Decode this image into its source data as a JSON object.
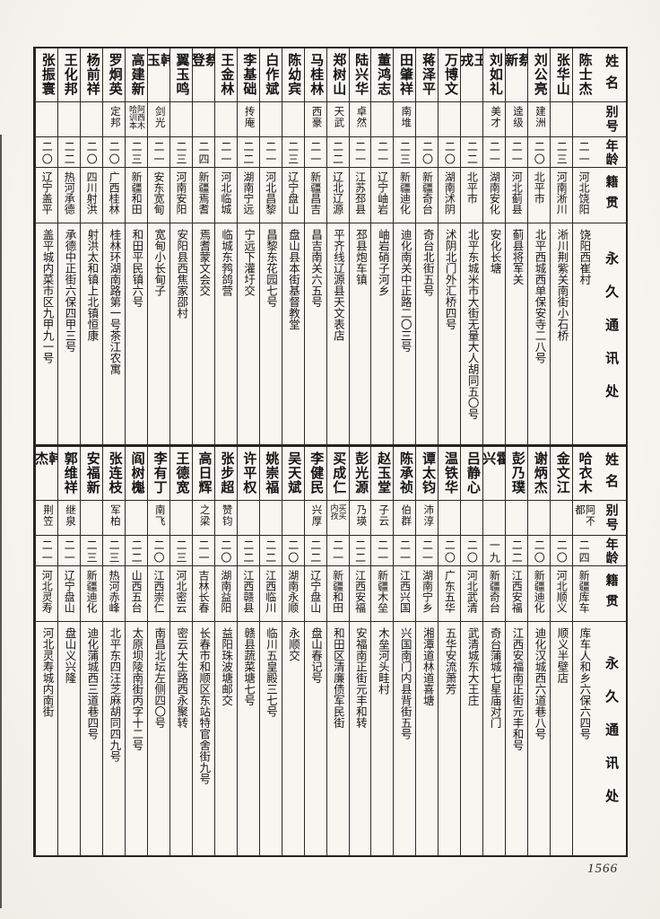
{
  "page_number": "1566",
  "headers": {
    "name": "姓名",
    "alias": "别号",
    "age": "年龄",
    "origin": "籍贯",
    "address": "永久通讯处"
  },
  "tables": [
    {
      "entries": [
        {
          "name": "陈士杰",
          "alias": "",
          "age": "二一",
          "origin": "河北饶阳",
          "address": "饶阳西崔村"
        },
        {
          "name": "张华山",
          "alias": "",
          "age": "二三",
          "origin": "河南淅川",
          "address": "淅川荆紫关南街小石桥"
        },
        {
          "name": "刘公亮",
          "alias": "建洲",
          "age": "二〇",
          "origin": "北平市",
          "address": "北平西城西单保安寺二八号"
        },
        {
          "name": "蔡新",
          "alias": "逵级",
          "age": "二一",
          "origin": "河北蓟县",
          "address": "蓟县将军关"
        },
        {
          "name": "刘如礼",
          "alias": "美才",
          "age": "二一",
          "origin": "湖南安化",
          "address": "安化长塘"
        },
        {
          "name": "王戎",
          "alias": "",
          "age": "二二",
          "origin": "北平市",
          "address": "北平东城米市大街无量大人胡同五〇号"
        },
        {
          "name": "万博文",
          "alias": "",
          "age": "二〇",
          "origin": "湖南沭阴",
          "address": "沭阴北门外汇桥四号"
        },
        {
          "name": "蒋泽平",
          "alias": "",
          "age": "二〇",
          "origin": "新疆奇台",
          "address": "奇台北街五号"
        },
        {
          "name": "田肇祥",
          "alias": "南堆",
          "age": "二三",
          "origin": "新疆迪化",
          "address": "迪化南关中正路二〇三号"
        },
        {
          "name": "董鸿志",
          "alias": "",
          "age": "二一",
          "origin": "辽宁岫岩",
          "address": "岫岩硝子河乡"
        },
        {
          "name": "陆兴华",
          "alias": "卓然",
          "age": "二一",
          "origin": "江苏邳县",
          "address": "邳县炮车镇"
        },
        {
          "name": "郑树山",
          "alias": "天武",
          "age": "二二",
          "origin": "辽北辽源",
          "address": "平齐线辽源县天文表店"
        },
        {
          "name": "马桂林",
          "alias": "西豪",
          "age": "二一",
          "origin": "新疆昌吉",
          "address": "昌吉南关六五号"
        },
        {
          "name": "陈幼宾",
          "alias": "",
          "age": "二三",
          "origin": "辽宁盘山",
          "address": "盘山县本街基督教堂"
        },
        {
          "name": "白作斌",
          "alias": "",
          "age": "二一",
          "origin": "河北昌黎",
          "address": "昌黎东花园七号"
        },
        {
          "name": "李基础",
          "alias": "抟庵",
          "age": "二二",
          "origin": "湖南宁远",
          "address": "宁远下灌圩交"
        },
        {
          "name": "王金林",
          "alias": "",
          "age": "二一",
          "origin": "河北临城",
          "address": "临城东鹁鸽营"
        },
        {
          "name": "蔡登",
          "alias": "",
          "age": "二四",
          "origin": "新疆焉耆",
          "address": "焉耆蒙文会交"
        },
        {
          "name": "翼玉鸣",
          "alias": "",
          "age": "二三",
          "origin": "河南安阳",
          "address": "安阳县西焦家邵村"
        },
        {
          "name": "韩玉",
          "alias": "剑光",
          "age": "二一",
          "origin": "安东宽甸",
          "address": "宽甸小长甸子"
        },
        {
          "name": "高建新",
          "alias": "阿西木\n哈训本",
          "age": "二三",
          "origin": "新疆和田",
          "address": "和田平民镇六号"
        },
        {
          "name": "罗炯英",
          "alias": "定邦",
          "age": "二〇",
          "origin": "广西桂林",
          "address": "桂林环湖南路第一号茶江农寓"
        },
        {
          "name": "杨前祥",
          "alias": "",
          "age": "二〇",
          "origin": "四川射洪",
          "address": "射洪太和镇上北镇恒康"
        },
        {
          "name": "王化邦",
          "alias": "",
          "age": "二二",
          "origin": "热河承德",
          "address": "承德中正街六保四甲三号"
        },
        {
          "name": "张振寰",
          "alias": "",
          "age": "二〇",
          "origin": "辽宁盖平",
          "address": "盖平城内菜市区九甲九一号"
        }
      ]
    },
    {
      "entries": [
        {
          "name": "哈衣木",
          "alias": "阿不都",
          "age": "二四",
          "origin": "新疆库车",
          "address": "库车人和乡六保六四号"
        },
        {
          "name": "金文江",
          "alias": "",
          "age": "二〇",
          "origin": "河北顺义",
          "address": "顺义半壁店"
        },
        {
          "name": "谢炳杰",
          "alias": "",
          "age": "二〇",
          "origin": "新疆迪化",
          "address": "迪化汉城西六道巷八号"
        },
        {
          "name": "彭乃璞",
          "alias": "",
          "age": "二二",
          "origin": "江西安福",
          "address": "江西安福南正街元丰和号"
        },
        {
          "name": "霍兴",
          "alias": "",
          "age": "一九",
          "origin": "新疆奇台",
          "address": "奇台蒲城七星庙对门"
        },
        {
          "name": "吕静心",
          "alias": "",
          "age": "二〇",
          "origin": "河北武清",
          "address": "武清城东大王庄"
        },
        {
          "name": "温铁华",
          "alias": "",
          "age": "二〇",
          "origin": "广东五华",
          "address": "五华安流萧芳"
        },
        {
          "name": "谭太钧",
          "alias": "沛淳",
          "age": "二一",
          "origin": "湖南宁乡",
          "address": "湘潭道林道喜塘"
        },
        {
          "name": "陈承祯",
          "alias": "伯群",
          "age": "二一",
          "origin": "江西兴国",
          "address": "兴国南门内县背街五号"
        },
        {
          "name": "赵玉堂",
          "alias": "子云",
          "age": "二一",
          "origin": "新疆木垒",
          "address": "木垒河头畦村"
        },
        {
          "name": "彭光源",
          "alias": "乃瑛",
          "age": "二二",
          "origin": "江西安福",
          "address": "安福南正街元丰和转"
        },
        {
          "name": "买成仁",
          "alias": "买买\n内孜",
          "age": "二一",
          "origin": "新疆和田",
          "address": "和田区清廉债军民街"
        },
        {
          "name": "李健民",
          "alias": "兴厚",
          "age": "二二",
          "origin": "辽宁盘山",
          "address": "盘山春记号"
        },
        {
          "name": "吴天斌",
          "alias": "",
          "age": "二〇",
          "origin": "湖南永顺",
          "address": "永顺交"
        },
        {
          "name": "姚崇福",
          "alias": "",
          "age": "二二",
          "origin": "江西临川",
          "address": "临川五皇殿三七号"
        },
        {
          "name": "许平权",
          "alias": "",
          "age": "二二",
          "origin": "江西赣县",
          "address": "赣县蔬菜塘七号"
        },
        {
          "name": "张步超",
          "alias": "赞钧",
          "age": "二〇",
          "origin": "湖南益阳",
          "address": "益阳珠波塘邮交"
        },
        {
          "name": "高日辉",
          "alias": "之梁",
          "age": "二一",
          "origin": "吉林长春",
          "address": "长春市和顺区东站特官舍街九号"
        },
        {
          "name": "王德宽",
          "alias": "",
          "age": "二三",
          "origin": "河北密云",
          "address": "密云大生路西永聚转"
        },
        {
          "name": "李有丁",
          "alias": "南飞",
          "age": "二〇",
          "origin": "江西崇仁",
          "address": "南昌北坛左侧四〇号"
        },
        {
          "name": "阎树櫆",
          "alias": "",
          "age": "二二",
          "origin": "山西五台",
          "address": "太原坝陵南街丙字十二号"
        },
        {
          "name": "张连枝",
          "alias": "军柏",
          "age": "二三",
          "origin": "热河赤峰",
          "address": "北平东四汪芝麻胡同四九号"
        },
        {
          "name": "安福新",
          "alias": "",
          "age": "二三",
          "origin": "新疆迪化",
          "address": "迪化蒲城西三道巷四号"
        },
        {
          "name": "郭维祥",
          "alias": "继泉",
          "age": "二一",
          "origin": "辽宁盘山",
          "address": "盘山义兴隆"
        },
        {
          "name": "韩杰",
          "alias": "荆笠",
          "age": "二一",
          "origin": "河北灵寿",
          "address": "河北灵寿城内南街"
        }
      ]
    }
  ]
}
